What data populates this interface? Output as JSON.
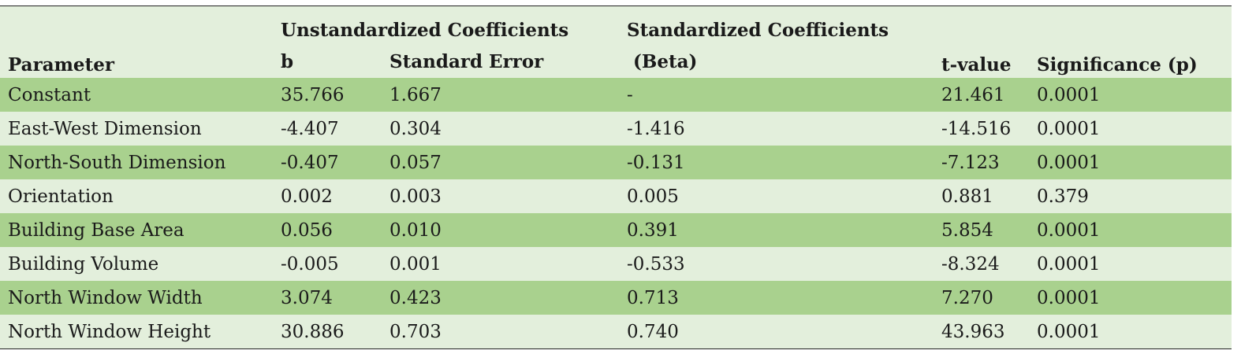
{
  "table": {
    "headers": {
      "parameter": "Parameter",
      "unstandardized": "Unstandardized Coefficients",
      "b": "b",
      "std_error": "Standard Error",
      "standardized": "Standardized Coefficients",
      "beta": " (Beta)",
      "t_value": "t-value",
      "significance": "Significance (p)"
    },
    "rows": [
      {
        "parameter": "Constant",
        "b": "35.766",
        "se": "1.667",
        "beta": "-",
        "t": "21.461",
        "p": "0.0001"
      },
      {
        "parameter": "East-West Dimension",
        "b": "-4.407",
        "se": "0.304",
        "beta": "-1.416",
        "t": "-14.516",
        "p": "0.0001"
      },
      {
        "parameter": "North-South Dimension",
        "b": "-0.407",
        "se": "0.057",
        "beta": "-0.131",
        "t": "-7.123",
        "p": "0.0001"
      },
      {
        "parameter": "Orientation",
        "b": "0.002",
        "se": "0.003",
        "beta": "0.005",
        "t": "0.881",
        "p": "0.379"
      },
      {
        "parameter": "Building Base Area",
        "b": "0.056",
        "se": "0.010",
        "beta": "0.391",
        "t": "5.854",
        "p": "0.0001"
      },
      {
        "parameter": "Building Volume",
        "b": "-0.005",
        "se": "0.001",
        "beta": "-0.533",
        "t": "-8.324",
        "p": "0.0001"
      },
      {
        "parameter": "North Window Width",
        "b": "3.074",
        "se": "0.423",
        "beta": "0.713",
        "t": "7.270",
        "p": "0.0001"
      },
      {
        "parameter": "North Window Height",
        "b": "30.886",
        "se": "0.703",
        "beta": "0.740",
        "t": "43.963",
        "p": "0.0001"
      }
    ]
  },
  "colors": {
    "header_bg": "#e3efdc",
    "row_dark": "#a9d18e",
    "row_light": "#e3efdc"
  }
}
